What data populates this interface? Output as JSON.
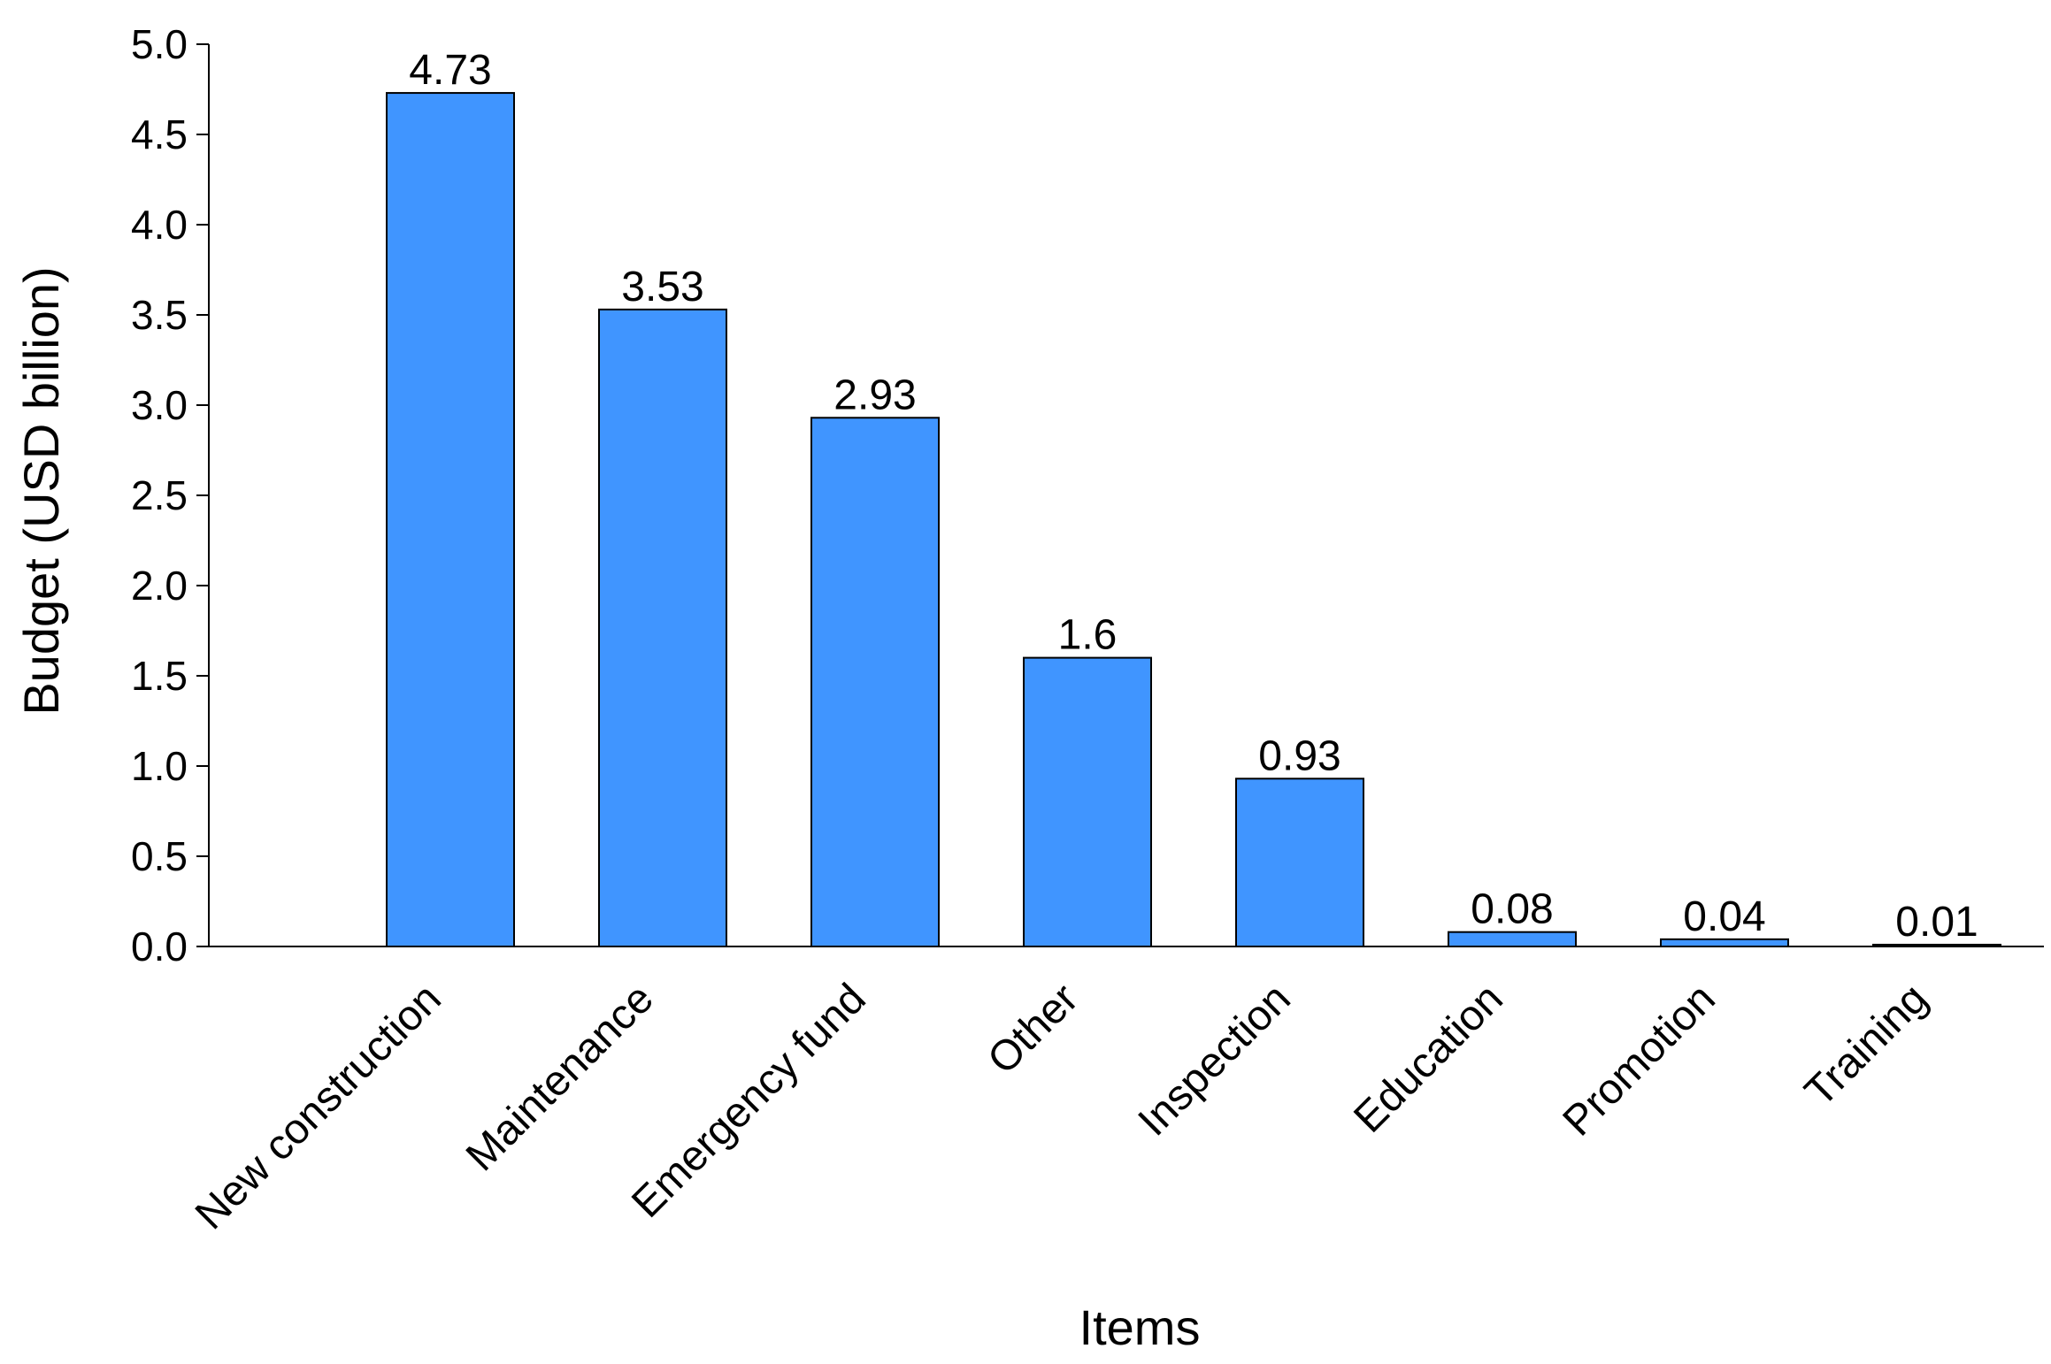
{
  "chart_data": {
    "type": "bar",
    "title": "",
    "xlabel": "Items",
    "ylabel": "Budget (USD billion)",
    "ylim": [
      0,
      5.0
    ],
    "yticks": [
      "0.0",
      "0.5",
      "1.0",
      "1.5",
      "2.0",
      "2.5",
      "3.0",
      "3.5",
      "4.0",
      "4.5",
      "5.0"
    ],
    "categories": [
      "New construction",
      "Maintenance",
      "Emergency fund",
      "Other",
      "Inspection",
      "Education",
      "Promotion",
      "Training"
    ],
    "values": [
      4.73,
      3.53,
      2.93,
      1.6,
      0.93,
      0.08,
      0.04,
      0.01
    ],
    "value_labels": [
      "4.73",
      "3.53",
      "2.93",
      "1.6",
      "0.93",
      "0.08",
      "0.04",
      "0.01"
    ],
    "grid": false,
    "legend": "none",
    "bar_color": "#4095FF",
    "bar_edge_color": "#000000"
  }
}
